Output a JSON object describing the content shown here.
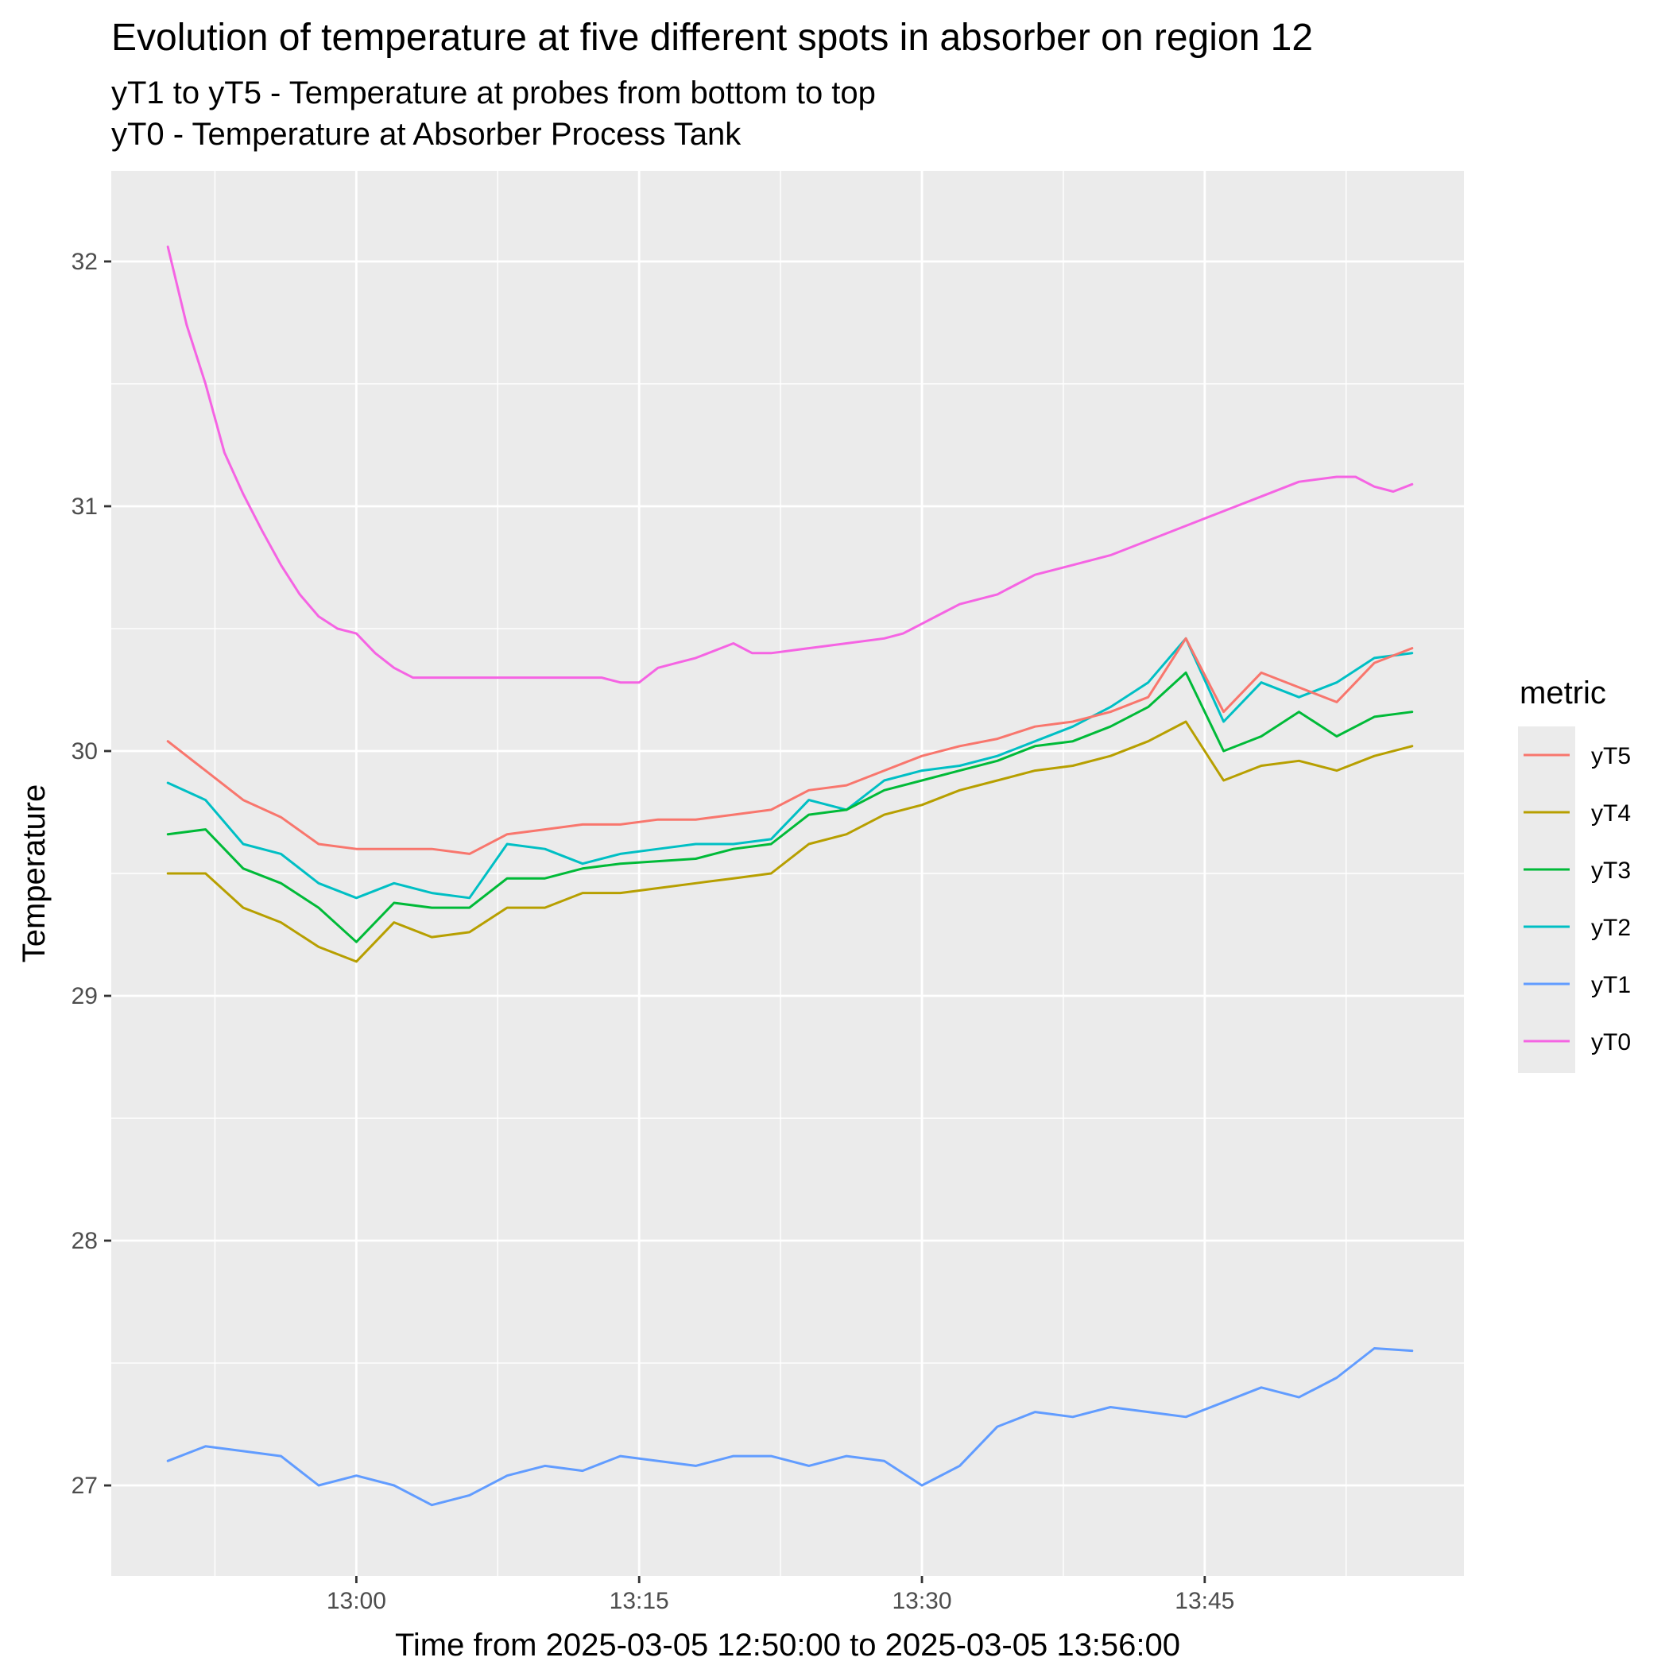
{
  "chart_data": {
    "type": "line",
    "title": "Evolution of temperature at five different spots in absorber on region 12",
    "subtitle_lines": [
      "yT1 to yT5 - Temperature at probes from bottom to top",
      "yT0 - Temperature at Absorber Process Tank"
    ],
    "xlabel": "Time from 2025-03-05 12:50:00 to 2025-03-05 13:56:00",
    "ylabel": "Temperature",
    "x_unit": "time of day (2025-03-05)",
    "xlim": [
      "12:47:00",
      "13:58:45"
    ],
    "ylim": [
      26.63,
      32.37
    ],
    "x_ticks": [
      "13:00",
      "13:15",
      "13:30",
      "13:45"
    ],
    "y_ticks": [
      27,
      28,
      29,
      30,
      31,
      32
    ],
    "grid": true,
    "legend_title": "metric",
    "legend_position": "right",
    "series": [
      {
        "name": "yT5",
        "color": "#F8766D",
        "points": [
          [
            "12:50",
            30.04
          ],
          [
            "12:52",
            29.92
          ],
          [
            "12:54",
            29.8
          ],
          [
            "12:56",
            29.73
          ],
          [
            "12:58",
            29.62
          ],
          [
            "13:00",
            29.6
          ],
          [
            "13:02",
            29.6
          ],
          [
            "13:04",
            29.6
          ],
          [
            "13:06",
            29.58
          ],
          [
            "13:08",
            29.66
          ],
          [
            "13:10",
            29.68
          ],
          [
            "13:12",
            29.7
          ],
          [
            "13:14",
            29.7
          ],
          [
            "13:16",
            29.72
          ],
          [
            "13:18",
            29.72
          ],
          [
            "13:20",
            29.74
          ],
          [
            "13:22",
            29.76
          ],
          [
            "13:24",
            29.84
          ],
          [
            "13:26",
            29.86
          ],
          [
            "13:28",
            29.92
          ],
          [
            "13:30",
            29.98
          ],
          [
            "13:32",
            30.02
          ],
          [
            "13:34",
            30.05
          ],
          [
            "13:36",
            30.1
          ],
          [
            "13:38",
            30.12
          ],
          [
            "13:40",
            30.16
          ],
          [
            "13:42",
            30.22
          ],
          [
            "13:44",
            30.46
          ],
          [
            "13:46",
            30.16
          ],
          [
            "13:48",
            30.32
          ],
          [
            "13:50",
            30.26
          ],
          [
            "13:52",
            30.2
          ],
          [
            "13:54",
            30.36
          ],
          [
            "13:56",
            30.42
          ]
        ]
      },
      {
        "name": "yT4",
        "color": "#B79F00",
        "points": [
          [
            "12:50",
            29.5
          ],
          [
            "12:52",
            29.5
          ],
          [
            "12:54",
            29.36
          ],
          [
            "12:56",
            29.3
          ],
          [
            "12:58",
            29.2
          ],
          [
            "13:00",
            29.14
          ],
          [
            "13:02",
            29.3
          ],
          [
            "13:04",
            29.24
          ],
          [
            "13:06",
            29.26
          ],
          [
            "13:08",
            29.36
          ],
          [
            "13:10",
            29.36
          ],
          [
            "13:12",
            29.42
          ],
          [
            "13:14",
            29.42
          ],
          [
            "13:16",
            29.44
          ],
          [
            "13:18",
            29.46
          ],
          [
            "13:20",
            29.48
          ],
          [
            "13:22",
            29.5
          ],
          [
            "13:24",
            29.62
          ],
          [
            "13:26",
            29.66
          ],
          [
            "13:28",
            29.74
          ],
          [
            "13:30",
            29.78
          ],
          [
            "13:32",
            29.84
          ],
          [
            "13:34",
            29.88
          ],
          [
            "13:36",
            29.92
          ],
          [
            "13:38",
            29.94
          ],
          [
            "13:40",
            29.98
          ],
          [
            "13:42",
            30.04
          ],
          [
            "13:44",
            30.12
          ],
          [
            "13:46",
            29.88
          ],
          [
            "13:48",
            29.94
          ],
          [
            "13:50",
            29.96
          ],
          [
            "13:52",
            29.92
          ],
          [
            "13:54",
            29.98
          ],
          [
            "13:56",
            30.02
          ]
        ]
      },
      {
        "name": "yT3",
        "color": "#00BA38",
        "points": [
          [
            "12:50",
            29.66
          ],
          [
            "12:52",
            29.68
          ],
          [
            "12:54",
            29.52
          ],
          [
            "12:56",
            29.46
          ],
          [
            "12:58",
            29.36
          ],
          [
            "13:00",
            29.22
          ],
          [
            "13:02",
            29.38
          ],
          [
            "13:04",
            29.36
          ],
          [
            "13:06",
            29.36
          ],
          [
            "13:08",
            29.48
          ],
          [
            "13:10",
            29.48
          ],
          [
            "13:12",
            29.52
          ],
          [
            "13:14",
            29.54
          ],
          [
            "13:16",
            29.55
          ],
          [
            "13:18",
            29.56
          ],
          [
            "13:20",
            29.6
          ],
          [
            "13:22",
            29.62
          ],
          [
            "13:24",
            29.74
          ],
          [
            "13:26",
            29.76
          ],
          [
            "13:28",
            29.84
          ],
          [
            "13:30",
            29.88
          ],
          [
            "13:32",
            29.92
          ],
          [
            "13:34",
            29.96
          ],
          [
            "13:36",
            30.02
          ],
          [
            "13:38",
            30.04
          ],
          [
            "13:40",
            30.1
          ],
          [
            "13:42",
            30.18
          ],
          [
            "13:44",
            30.32
          ],
          [
            "13:46",
            30.0
          ],
          [
            "13:48",
            30.06
          ],
          [
            "13:50",
            30.16
          ],
          [
            "13:52",
            30.06
          ],
          [
            "13:54",
            30.14
          ],
          [
            "13:56",
            30.16
          ]
        ]
      },
      {
        "name": "yT2",
        "color": "#00BFC4",
        "points": [
          [
            "12:50",
            29.87
          ],
          [
            "12:52",
            29.8
          ],
          [
            "12:54",
            29.62
          ],
          [
            "12:56",
            29.58
          ],
          [
            "12:58",
            29.46
          ],
          [
            "13:00",
            29.4
          ],
          [
            "13:02",
            29.46
          ],
          [
            "13:04",
            29.42
          ],
          [
            "13:06",
            29.4
          ],
          [
            "13:08",
            29.62
          ],
          [
            "13:10",
            29.6
          ],
          [
            "13:12",
            29.54
          ],
          [
            "13:14",
            29.58
          ],
          [
            "13:16",
            29.6
          ],
          [
            "13:18",
            29.62
          ],
          [
            "13:20",
            29.62
          ],
          [
            "13:22",
            29.64
          ],
          [
            "13:24",
            29.8
          ],
          [
            "13:26",
            29.76
          ],
          [
            "13:28",
            29.88
          ],
          [
            "13:30",
            29.92
          ],
          [
            "13:32",
            29.94
          ],
          [
            "13:34",
            29.98
          ],
          [
            "13:36",
            30.04
          ],
          [
            "13:38",
            30.1
          ],
          [
            "13:40",
            30.18
          ],
          [
            "13:42",
            30.28
          ],
          [
            "13:44",
            30.46
          ],
          [
            "13:46",
            30.12
          ],
          [
            "13:48",
            30.28
          ],
          [
            "13:50",
            30.22
          ],
          [
            "13:52",
            30.28
          ],
          [
            "13:54",
            30.38
          ],
          [
            "13:56",
            30.4
          ]
        ]
      },
      {
        "name": "yT1",
        "color": "#619CFF",
        "points": [
          [
            "12:50",
            27.1
          ],
          [
            "12:52",
            27.16
          ],
          [
            "12:54",
            27.14
          ],
          [
            "12:56",
            27.12
          ],
          [
            "12:58",
            27.0
          ],
          [
            "13:00",
            27.04
          ],
          [
            "13:02",
            27.0
          ],
          [
            "13:04",
            26.92
          ],
          [
            "13:06",
            26.96
          ],
          [
            "13:08",
            27.04
          ],
          [
            "13:10",
            27.08
          ],
          [
            "13:12",
            27.06
          ],
          [
            "13:14",
            27.12
          ],
          [
            "13:16",
            27.1
          ],
          [
            "13:18",
            27.08
          ],
          [
            "13:20",
            27.12
          ],
          [
            "13:22",
            27.12
          ],
          [
            "13:24",
            27.08
          ],
          [
            "13:26",
            27.12
          ],
          [
            "13:28",
            27.1
          ],
          [
            "13:30",
            27.0
          ],
          [
            "13:32",
            27.08
          ],
          [
            "13:34",
            27.24
          ],
          [
            "13:36",
            27.3
          ],
          [
            "13:38",
            27.28
          ],
          [
            "13:40",
            27.32
          ],
          [
            "13:42",
            27.3
          ],
          [
            "13:44",
            27.28
          ],
          [
            "13:46",
            27.34
          ],
          [
            "13:48",
            27.4
          ],
          [
            "13:50",
            27.36
          ],
          [
            "13:52",
            27.44
          ],
          [
            "13:54",
            27.56
          ],
          [
            "13:56",
            27.55
          ]
        ]
      },
      {
        "name": "yT0",
        "color": "#F564E3",
        "points": [
          [
            "12:50",
            32.06
          ],
          [
            "12:51",
            31.74
          ],
          [
            "12:52",
            31.5
          ],
          [
            "12:53",
            31.22
          ],
          [
            "12:54",
            31.05
          ],
          [
            "12:55",
            30.9
          ],
          [
            "12:56",
            30.76
          ],
          [
            "12:57",
            30.64
          ],
          [
            "12:58",
            30.55
          ],
          [
            "12:59",
            30.5
          ],
          [
            "13:00",
            30.48
          ],
          [
            "13:01",
            30.4
          ],
          [
            "13:02",
            30.34
          ],
          [
            "13:03",
            30.3
          ],
          [
            "13:05",
            30.3
          ],
          [
            "13:10",
            30.3
          ],
          [
            "13:13",
            30.3
          ],
          [
            "13:14",
            30.28
          ],
          [
            "13:15",
            30.28
          ],
          [
            "13:16",
            30.34
          ],
          [
            "13:17",
            30.36
          ],
          [
            "13:18",
            30.38
          ],
          [
            "13:20",
            30.44
          ],
          [
            "13:21",
            30.4
          ],
          [
            "13:22",
            30.4
          ],
          [
            "13:24",
            30.42
          ],
          [
            "13:26",
            30.44
          ],
          [
            "13:28",
            30.46
          ],
          [
            "13:29",
            30.48
          ],
          [
            "13:30",
            30.52
          ],
          [
            "13:31",
            30.56
          ],
          [
            "13:32",
            30.6
          ],
          [
            "13:34",
            30.64
          ],
          [
            "13:35",
            30.68
          ],
          [
            "13:36",
            30.72
          ],
          [
            "13:38",
            30.76
          ],
          [
            "13:40",
            30.8
          ],
          [
            "13:42",
            30.86
          ],
          [
            "13:44",
            30.92
          ],
          [
            "13:46",
            30.98
          ],
          [
            "13:48",
            31.04
          ],
          [
            "13:50",
            31.1
          ],
          [
            "13:52",
            31.12
          ],
          [
            "13:53",
            31.12
          ],
          [
            "13:54",
            31.08
          ],
          [
            "13:55",
            31.06
          ],
          [
            "13:56",
            31.09
          ]
        ]
      }
    ]
  }
}
